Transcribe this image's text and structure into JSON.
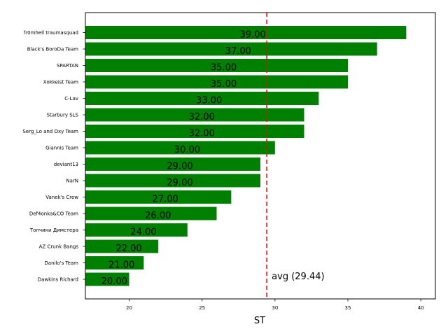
{
  "chart_data": {
    "type": "bar",
    "orientation": "horizontal",
    "categories": [
      "fr0mhell traumasquad",
      "Black's BoroDa Team",
      "SPARTAN",
      "Xokkeist Team",
      "C-Lav",
      "Starbury SLS",
      "Serg_Lo and Oxy Team",
      "Giannis Team",
      "deviant13",
      "NarN",
      "Vanek's Crew",
      "Def4onka&CO Team",
      "Топчики Димстера",
      "AZ Crunk Bangs",
      "Danilo's Team",
      "Dawkins Richard"
    ],
    "values": [
      39,
      37,
      35,
      35,
      33,
      32,
      32,
      30,
      29,
      29,
      27,
      26,
      24,
      22,
      21,
      20
    ],
    "value_labels": [
      "39.00",
      "37.00",
      "35.00",
      "35.00",
      "33.00",
      "32.00",
      "32.00",
      "30.00",
      "29.00",
      "29.00",
      "27.00",
      "26.00",
      "24.00",
      "22.00",
      "21.00",
      "20.00"
    ],
    "xlabel": "ST",
    "ylabel": "",
    "title": "",
    "xlim": [
      17,
      41
    ],
    "xticks": [
      20,
      25,
      30,
      35,
      40
    ],
    "xtick_labels": [
      "20",
      "25",
      "30",
      "35",
      "40"
    ],
    "bar_color": "#008000",
    "reference_line": {
      "value": 29.44,
      "label": "avg (29.44)",
      "color": "#ff0000",
      "style": "dashed"
    },
    "grid": false,
    "legend": "none"
  }
}
